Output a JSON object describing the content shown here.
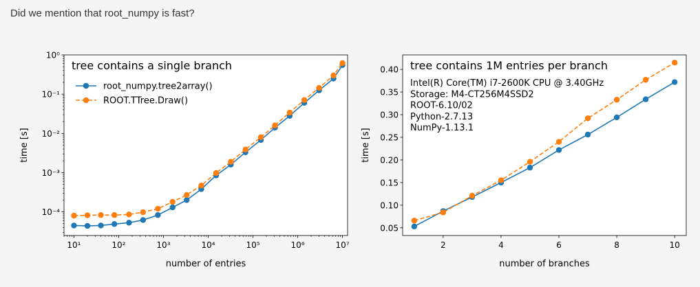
{
  "heading": "Did we mention that root_numpy is fast?",
  "chart_data": [
    {
      "type": "line",
      "title": "tree contains a single branch",
      "xlabel": "number of entries",
      "ylabel": "time [s]",
      "xscale": "log",
      "yscale": "log",
      "xlim": [
        6,
        13000000
      ],
      "ylim": [
        2.5e-05,
        1
      ],
      "xticks": [
        10,
        100,
        1000,
        10000,
        100000,
        1000000,
        10000000
      ],
      "xtick_labels": [
        "10¹",
        "10²",
        "10³",
        "10⁴",
        "10⁵",
        "10⁶",
        "10⁷"
      ],
      "yticks": [
        0.0001,
        0.001,
        0.01,
        0.1,
        1
      ],
      "ytick_labels": [
        "10⁻⁴",
        "10⁻³",
        "10⁻²",
        "10⁻¹",
        "10⁰"
      ],
      "legend_position": "upper-left",
      "grid": false,
      "x": [
        10,
        20,
        40,
        80,
        170,
        350,
        750,
        1600,
        3300,
        7000,
        15000,
        32000,
        68000,
        150000,
        310000,
        660000,
        1400000,
        3000000,
        6300000,
        10000000
      ],
      "series": [
        {
          "name": "root_numpy.tree2array()",
          "color": "#1f77b4",
          "style": "solid",
          "values": [
            4.5e-05,
            4.4e-05,
            4.5e-05,
            4.9e-05,
            5.3e-05,
            6.2e-05,
            8.3e-05,
            0.00013,
            0.0002,
            0.00038,
            0.00085,
            0.0016,
            0.0033,
            0.0068,
            0.014,
            0.028,
            0.06,
            0.125,
            0.25,
            0.55
          ]
        },
        {
          "name": "ROOT.TTree.Draw()",
          "color": "#ff7f0e",
          "style": "dashed",
          "values": [
            8e-05,
            8.2e-05,
            8.3e-05,
            8.3e-05,
            8.6e-05,
            9.8e-05,
            0.00012,
            0.00018,
            0.00027,
            0.00047,
            0.00098,
            0.0019,
            0.0039,
            0.008,
            0.016,
            0.034,
            0.071,
            0.145,
            0.3,
            0.62
          ]
        }
      ]
    },
    {
      "type": "line",
      "title": "tree contains 1M entries per branch",
      "annotation": [
        "Intel(R) Core(TM) i7-2600K CPU @ 3.40GHz",
        "Storage: M4-CT256M4SSD2",
        "ROOT-6.10/02",
        "Python-2.7.13",
        "NumPy-1.13.1"
      ],
      "xlabel": "number of branches",
      "ylabel": "time [s]",
      "xlim": [
        0.6,
        10.4
      ],
      "ylim": [
        0.033,
        0.432
      ],
      "xticks": [
        2,
        4,
        6,
        8,
        10
      ],
      "xtick_labels": [
        "2",
        "4",
        "6",
        "8",
        "10"
      ],
      "yticks": [
        0.05,
        0.1,
        0.15,
        0.2,
        0.25,
        0.3,
        0.35,
        0.4
      ],
      "ytick_labels": [
        "0.05",
        "0.10",
        "0.15",
        "0.20",
        "0.25",
        "0.30",
        "0.35",
        "0.40"
      ],
      "grid": false,
      "x": [
        1,
        2,
        3,
        4,
        5,
        6,
        7,
        8,
        9,
        10
      ],
      "series": [
        {
          "color": "#1f77b4",
          "style": "solid",
          "values": [
            0.053,
            0.087,
            0.118,
            0.15,
            0.183,
            0.222,
            0.256,
            0.294,
            0.334,
            0.372
          ]
        },
        {
          "color": "#ff7f0e",
          "style": "dashed",
          "values": [
            0.066,
            0.084,
            0.121,
            0.155,
            0.196,
            0.24,
            0.292,
            0.333,
            0.377,
            0.415
          ]
        }
      ]
    }
  ]
}
